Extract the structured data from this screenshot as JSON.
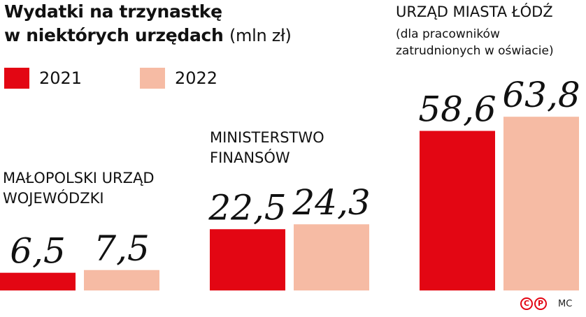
{
  "title": {
    "line1": "Wydatki na trzynastkę",
    "line2": "w niektórych urzędach",
    "unit": "(mln zł)"
  },
  "legend": [
    {
      "label": "2021",
      "color": "#e30613"
    },
    {
      "label": "2022",
      "color": "#f6bba4"
    }
  ],
  "groups": [
    {
      "label": "MAŁOPOLSKI URZĄD\nWOJEWÓDZKI",
      "sublabel": ""
    },
    {
      "label": "MINISTERSTWO\nFINANSÓW",
      "sublabel": ""
    },
    {
      "label": "URZĄD MIASTA ŁÓDŹ",
      "sublabel": "(dla pracowników\nzatrudnionych w oświacie)"
    }
  ],
  "credit": {
    "logo_c": "C",
    "logo_p": "P",
    "author": "MC"
  },
  "chart_data": {
    "type": "bar",
    "title": "Wydatki na trzynastkę w niektórych urzędach (mln zł)",
    "categories": [
      "MAŁOPOLSKI URZĄD WOJEWÓDZKI",
      "MINISTERSTWO FINANSÓW",
      "URZĄD MIASTA ŁÓDŹ"
    ],
    "series": [
      {
        "name": "2021",
        "values": [
          6.5,
          22.5,
          58.6
        ],
        "labels": [
          "6,5",
          "22,5",
          "58,6"
        ],
        "color": "#e30613"
      },
      {
        "name": "2022",
        "values": [
          7.5,
          24.3,
          63.8
        ],
        "labels": [
          "7,5",
          "24,3",
          "63,8"
        ],
        "color": "#f6bba4"
      }
    ],
    "xlabel": "",
    "ylabel": "",
    "grid": false,
    "legend_position": "top-left"
  }
}
